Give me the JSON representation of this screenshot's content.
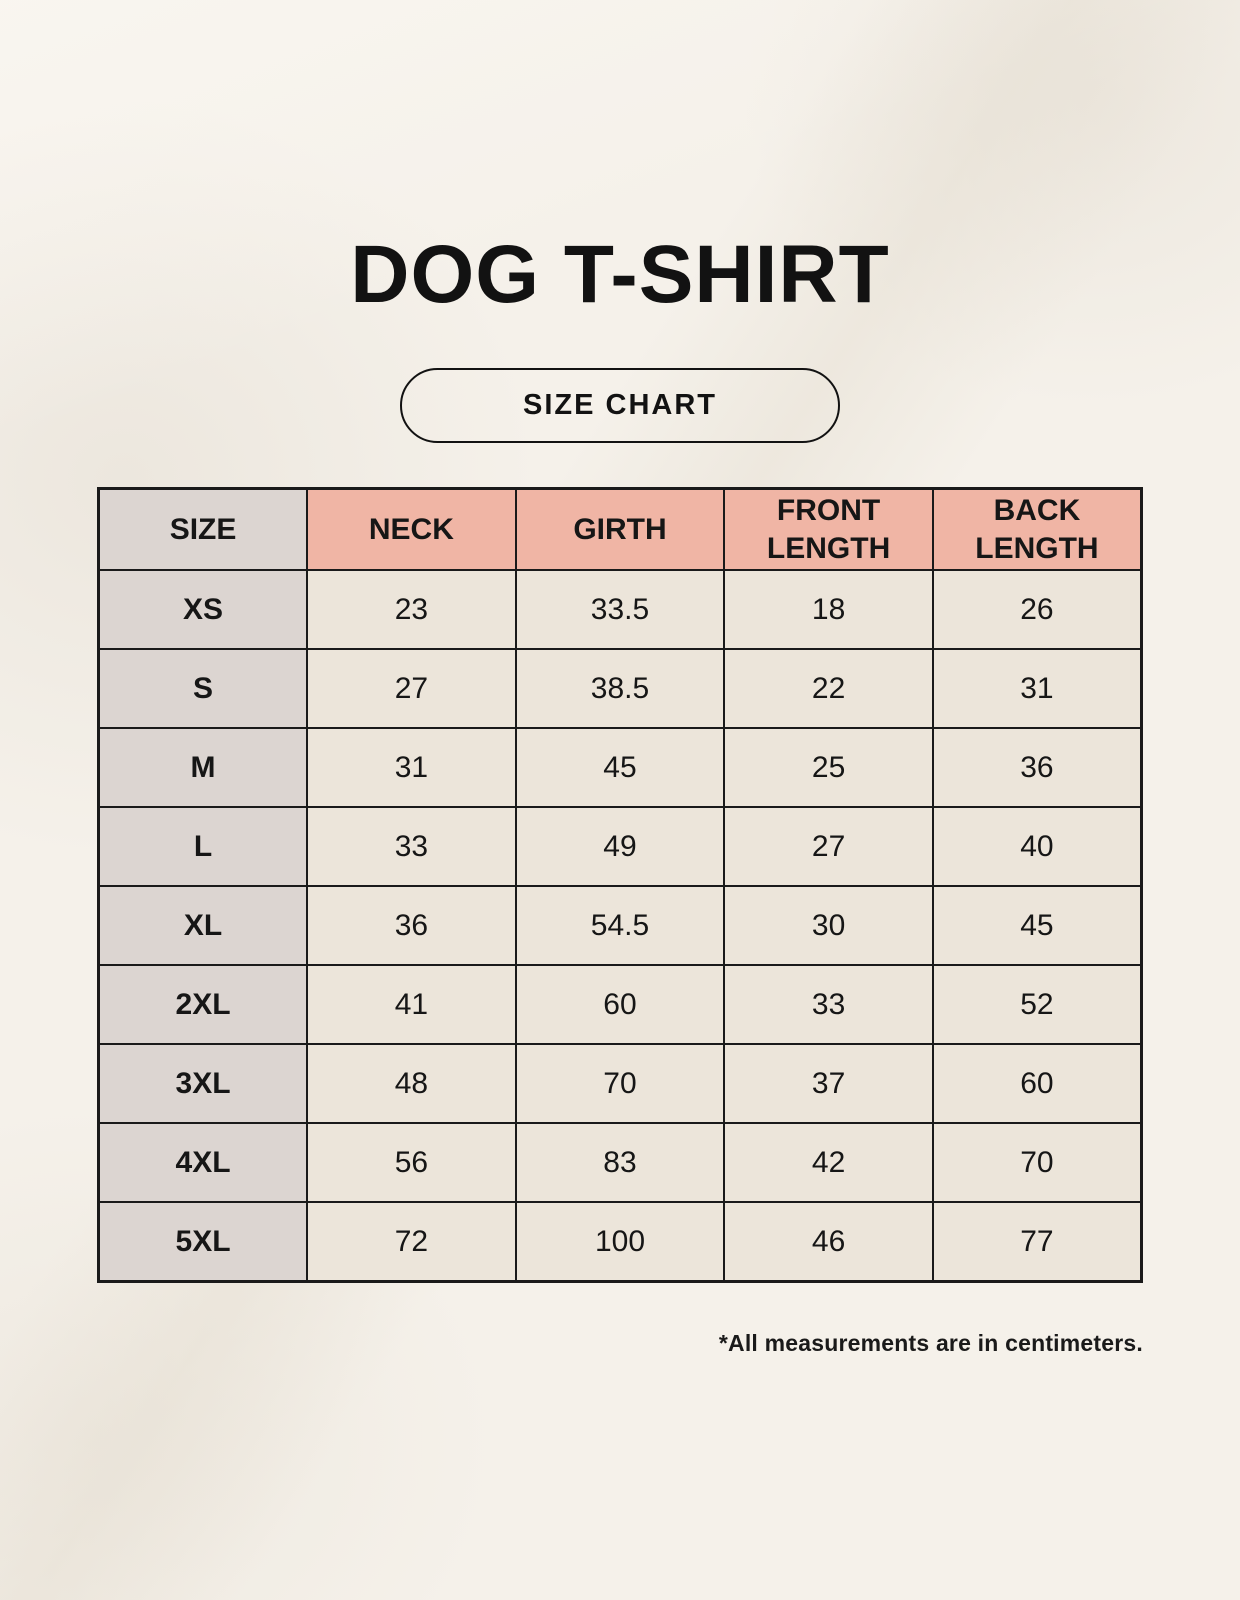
{
  "page": {
    "title": "DOG T-SHIRT",
    "badge_label": "SIZE CHART",
    "footnote": "*All measurements are in centimeters."
  },
  "colors": {
    "background": "#F5F1EA",
    "header_accent": "#F0B5A5",
    "size_column": "#DCD5D1",
    "data_cell": "#ECE5DA",
    "border": "#1A1A1A",
    "text": "#121212"
  },
  "table": {
    "headers": [
      "SIZE",
      "NECK",
      "GIRTH",
      "FRONT LENGTH",
      "BACK LENGTH"
    ],
    "rows": [
      {
        "size": "XS",
        "neck": "23",
        "girth": "33.5",
        "front_length": "18",
        "back_length": "26"
      },
      {
        "size": "S",
        "neck": "27",
        "girth": "38.5",
        "front_length": "22",
        "back_length": "31"
      },
      {
        "size": "M",
        "neck": "31",
        "girth": "45",
        "front_length": "25",
        "back_length": "36"
      },
      {
        "size": "L",
        "neck": "33",
        "girth": "49",
        "front_length": "27",
        "back_length": "40"
      },
      {
        "size": "XL",
        "neck": "36",
        "girth": "54.5",
        "front_length": "30",
        "back_length": "45"
      },
      {
        "size": "2XL",
        "neck": "41",
        "girth": "60",
        "front_length": "33",
        "back_length": "52"
      },
      {
        "size": "3XL",
        "neck": "48",
        "girth": "70",
        "front_length": "37",
        "back_length": "60"
      },
      {
        "size": "4XL",
        "neck": "56",
        "girth": "83",
        "front_length": "42",
        "back_length": "70"
      },
      {
        "size": "5XL",
        "neck": "72",
        "girth": "100",
        "front_length": "46",
        "back_length": "77"
      }
    ]
  },
  "chart_data": {
    "type": "table",
    "title": "DOG T-SHIRT",
    "subtitle": "SIZE CHART",
    "columns": [
      "SIZE",
      "NECK",
      "GIRTH",
      "FRONT LENGTH",
      "BACK LENGTH"
    ],
    "rows": [
      [
        "XS",
        23,
        33.5,
        18,
        26
      ],
      [
        "S",
        27,
        38.5,
        22,
        31
      ],
      [
        "M",
        31,
        45,
        25,
        36
      ],
      [
        "L",
        33,
        49,
        27,
        40
      ],
      [
        "XL",
        36,
        54.5,
        30,
        45
      ],
      [
        "2XL",
        41,
        60,
        33,
        52
      ],
      [
        "3XL",
        48,
        70,
        37,
        60
      ],
      [
        "4XL",
        56,
        83,
        42,
        70
      ],
      [
        "5XL",
        72,
        100,
        46,
        77
      ]
    ],
    "units": "centimeters",
    "note": "*All measurements are in centimeters."
  }
}
